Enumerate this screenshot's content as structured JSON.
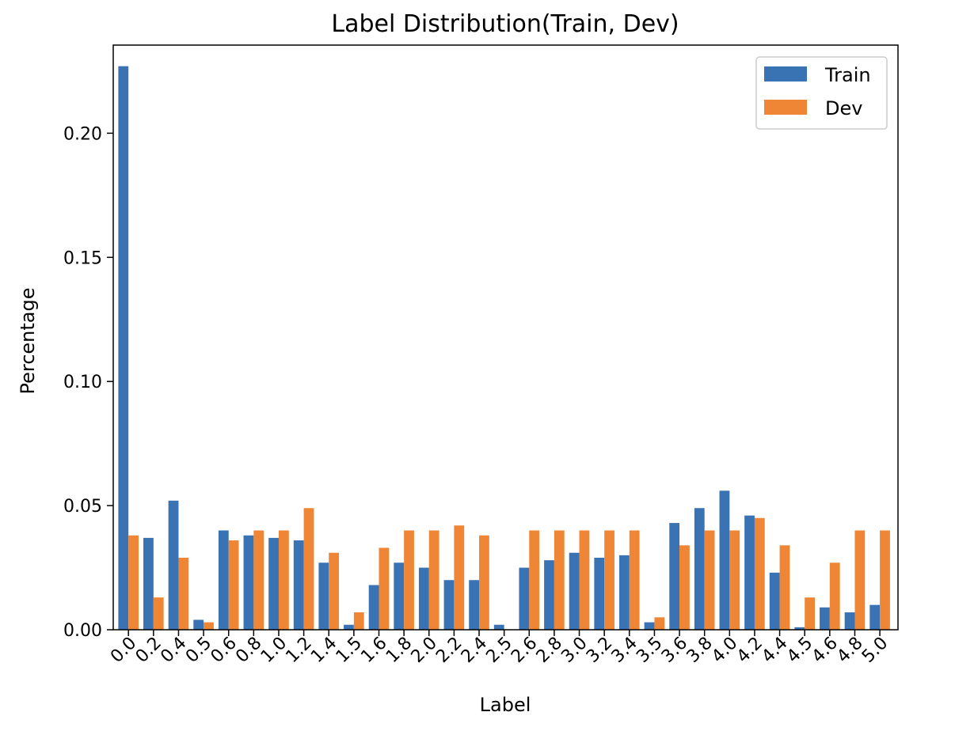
{
  "chart_data": {
    "type": "bar",
    "title": "Label Distribution(Train, Dev)",
    "xlabel": "Label",
    "ylabel": "Percentage",
    "ylim": [
      0,
      0.2355
    ],
    "yticks": [
      "0.00",
      "0.05",
      "0.10",
      "0.15",
      "0.20"
    ],
    "ytick_values": [
      0,
      0.05,
      0.1,
      0.15,
      0.2
    ],
    "grid": false,
    "legend_position": "top-right",
    "categories": [
      "0.0",
      "0.2",
      "0.4",
      "0.5",
      "0.6",
      "0.8",
      "1.0",
      "1.2",
      "1.4",
      "1.5",
      "1.6",
      "1.8",
      "2.0",
      "2.2",
      "2.4",
      "2.5",
      "2.6",
      "2.8",
      "3.0",
      "3.2",
      "3.4",
      "3.5",
      "3.6",
      "3.8",
      "4.0",
      "4.2",
      "4.4",
      "4.5",
      "4.6",
      "4.8",
      "5.0"
    ],
    "series": [
      {
        "name": "Train",
        "color": "#3a73b3",
        "values": [
          0.227,
          0.037,
          0.052,
          0.004,
          0.04,
          0.038,
          0.037,
          0.036,
          0.027,
          0.002,
          0.018,
          0.027,
          0.025,
          0.02,
          0.02,
          0.002,
          0.025,
          0.028,
          0.031,
          0.029,
          0.03,
          0.003,
          0.043,
          0.049,
          0.056,
          0.046,
          0.023,
          0.001,
          0.009,
          0.007,
          0.01
        ]
      },
      {
        "name": "Dev",
        "color": "#ef8636",
        "values": [
          0.038,
          0.013,
          0.029,
          0.003,
          0.036,
          0.04,
          0.04,
          0.049,
          0.031,
          0.007,
          0.033,
          0.04,
          0.04,
          0.042,
          0.038,
          0.0,
          0.04,
          0.04,
          0.04,
          0.04,
          0.04,
          0.005,
          0.034,
          0.04,
          0.04,
          0.045,
          0.034,
          0.013,
          0.027,
          0.04,
          0.04
        ]
      }
    ]
  }
}
